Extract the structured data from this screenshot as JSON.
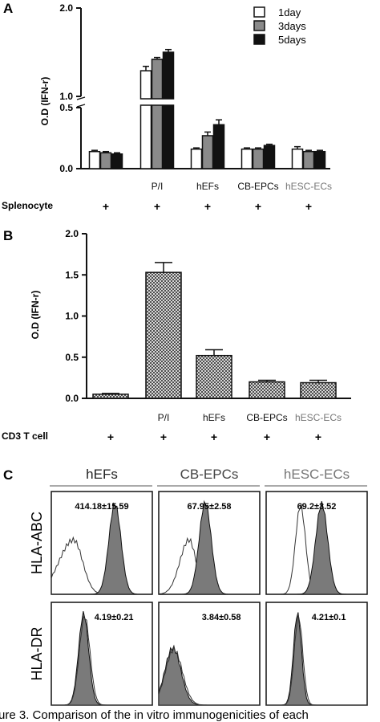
{
  "chart_data": [
    {
      "panel": "A",
      "type": "bar",
      "ylabel": "O.D (IFN-r)",
      "categories": [
        "",
        "P/I",
        "hEFs",
        "CB-EPCs",
        "hESC-ECs"
      ],
      "category_colors": [
        "#111111",
        "#111111",
        "#111111",
        "#111111",
        "#777777"
      ],
      "yticks_lower": [
        "0.0",
        "0.5"
      ],
      "yticks_upper": [
        "1.0",
        "2.0"
      ],
      "ylim_lower": [
        0,
        0.5
      ],
      "ylim_upper": [
        1.0,
        2.0
      ],
      "axis_break": [
        0.5,
        1.0
      ],
      "legend_position": "top-right",
      "series": [
        {
          "name": "1day",
          "color": "#ffffff",
          "values": [
            0.14,
            1.29,
            0.16,
            0.16,
            0.16
          ],
          "errors": [
            0.01,
            0.05,
            0.01,
            0.01,
            0.02
          ]
        },
        {
          "name": "3days",
          "color": "#8a8a8a",
          "values": [
            0.13,
            1.42,
            0.27,
            0.16,
            0.14
          ],
          "errors": [
            0.01,
            0.02,
            0.03,
            0.01,
            0.01
          ]
        },
        {
          "name": "5days",
          "color": "#111111",
          "values": [
            0.12,
            1.5,
            0.36,
            0.19,
            0.14
          ],
          "errors": [
            0.01,
            0.03,
            0.04,
            0.01,
            0.01
          ]
        }
      ],
      "condition": {
        "label": "Splenocyte",
        "marks": [
          "+",
          "+",
          "+",
          "+",
          "+"
        ]
      }
    },
    {
      "panel": "B",
      "type": "bar",
      "ylabel": "O.D (IFN-r)",
      "categories": [
        "",
        "P/I",
        "hEFs",
        "CB-EPCs",
        "hESC-ECs"
      ],
      "category_colors": [
        "#111111",
        "#111111",
        "#111111",
        "#111111",
        "#777777"
      ],
      "yticks": [
        "0.0",
        "0.5",
        "1.0",
        "1.5",
        "2.0"
      ],
      "ylim": [
        0,
        2.0
      ],
      "values": [
        0.05,
        1.53,
        0.52,
        0.2,
        0.19
      ],
      "errors": [
        0.01,
        0.12,
        0.07,
        0.02,
        0.03
      ],
      "fill": "crosshatch",
      "condition": {
        "label": "CD3 T cell",
        "marks": [
          "+",
          "+",
          "+",
          "+",
          "+"
        ]
      }
    },
    {
      "panel": "C",
      "type": "histogram",
      "columns": [
        "hEFs",
        "CB-EPCs",
        "hESC-ECs"
      ],
      "column_colors": [
        "#222222",
        "#444444",
        "#777777"
      ],
      "rows": [
        "HLA-ABC",
        "HLA-DR"
      ],
      "values_text": [
        [
          "414.18±15.59",
          "67.95±2.58",
          "69.2±3.52"
        ],
        [
          "4.19±0.21",
          "3.84±0.58",
          "4.21±0.1"
        ]
      ]
    }
  ],
  "caption": {
    "text": "ure 3. Comparison of the in vitro immunogenicities of each"
  }
}
